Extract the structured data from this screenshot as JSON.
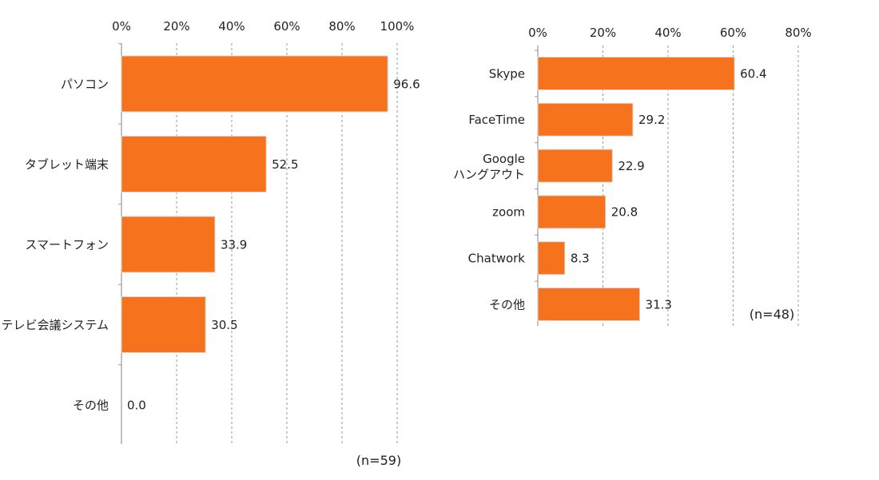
{
  "colors": {
    "bar": "#F7721D",
    "bar_stroke": "#d8d8d8",
    "grid": "#9a9a9a",
    "text": "#222222"
  },
  "chart_data": [
    {
      "type": "bar",
      "orientation": "horizontal",
      "title": "",
      "categories": [
        "パソコン",
        "タブレット端末",
        "スマートフォン",
        "テレビ会議システム",
        "その他"
      ],
      "values": [
        96.6,
        52.5,
        33.9,
        30.5,
        0.0
      ],
      "value_labels": [
        "96.6",
        "52.5",
        "33.9",
        "30.5",
        "0.0"
      ],
      "xlim": [
        0,
        100
      ],
      "ticks": [
        "0%",
        "20%",
        "40%",
        "60%",
        "80%",
        "100%"
      ],
      "tick_values": [
        0,
        20,
        40,
        60,
        80,
        100
      ],
      "grid": "vertical dashed",
      "axis_position": "top",
      "note": "(n=59)"
    },
    {
      "type": "bar",
      "orientation": "horizontal",
      "title": "",
      "categories": [
        "Skype",
        "FaceTime",
        "Google\nハングアウト",
        "zoom",
        "Chatwork",
        "その他"
      ],
      "values": [
        60.4,
        29.2,
        22.9,
        20.8,
        8.3,
        31.3
      ],
      "value_labels": [
        "60.4",
        "29.2",
        "22.9",
        "20.8",
        "8.3",
        "31.3"
      ],
      "xlim": [
        0,
        80
      ],
      "ticks": [
        "0%",
        "20%",
        "40%",
        "60%",
        "80%"
      ],
      "tick_values": [
        0,
        20,
        40,
        60,
        80
      ],
      "grid": "vertical dashed",
      "axis_position": "top",
      "note": "(n=48)"
    }
  ]
}
